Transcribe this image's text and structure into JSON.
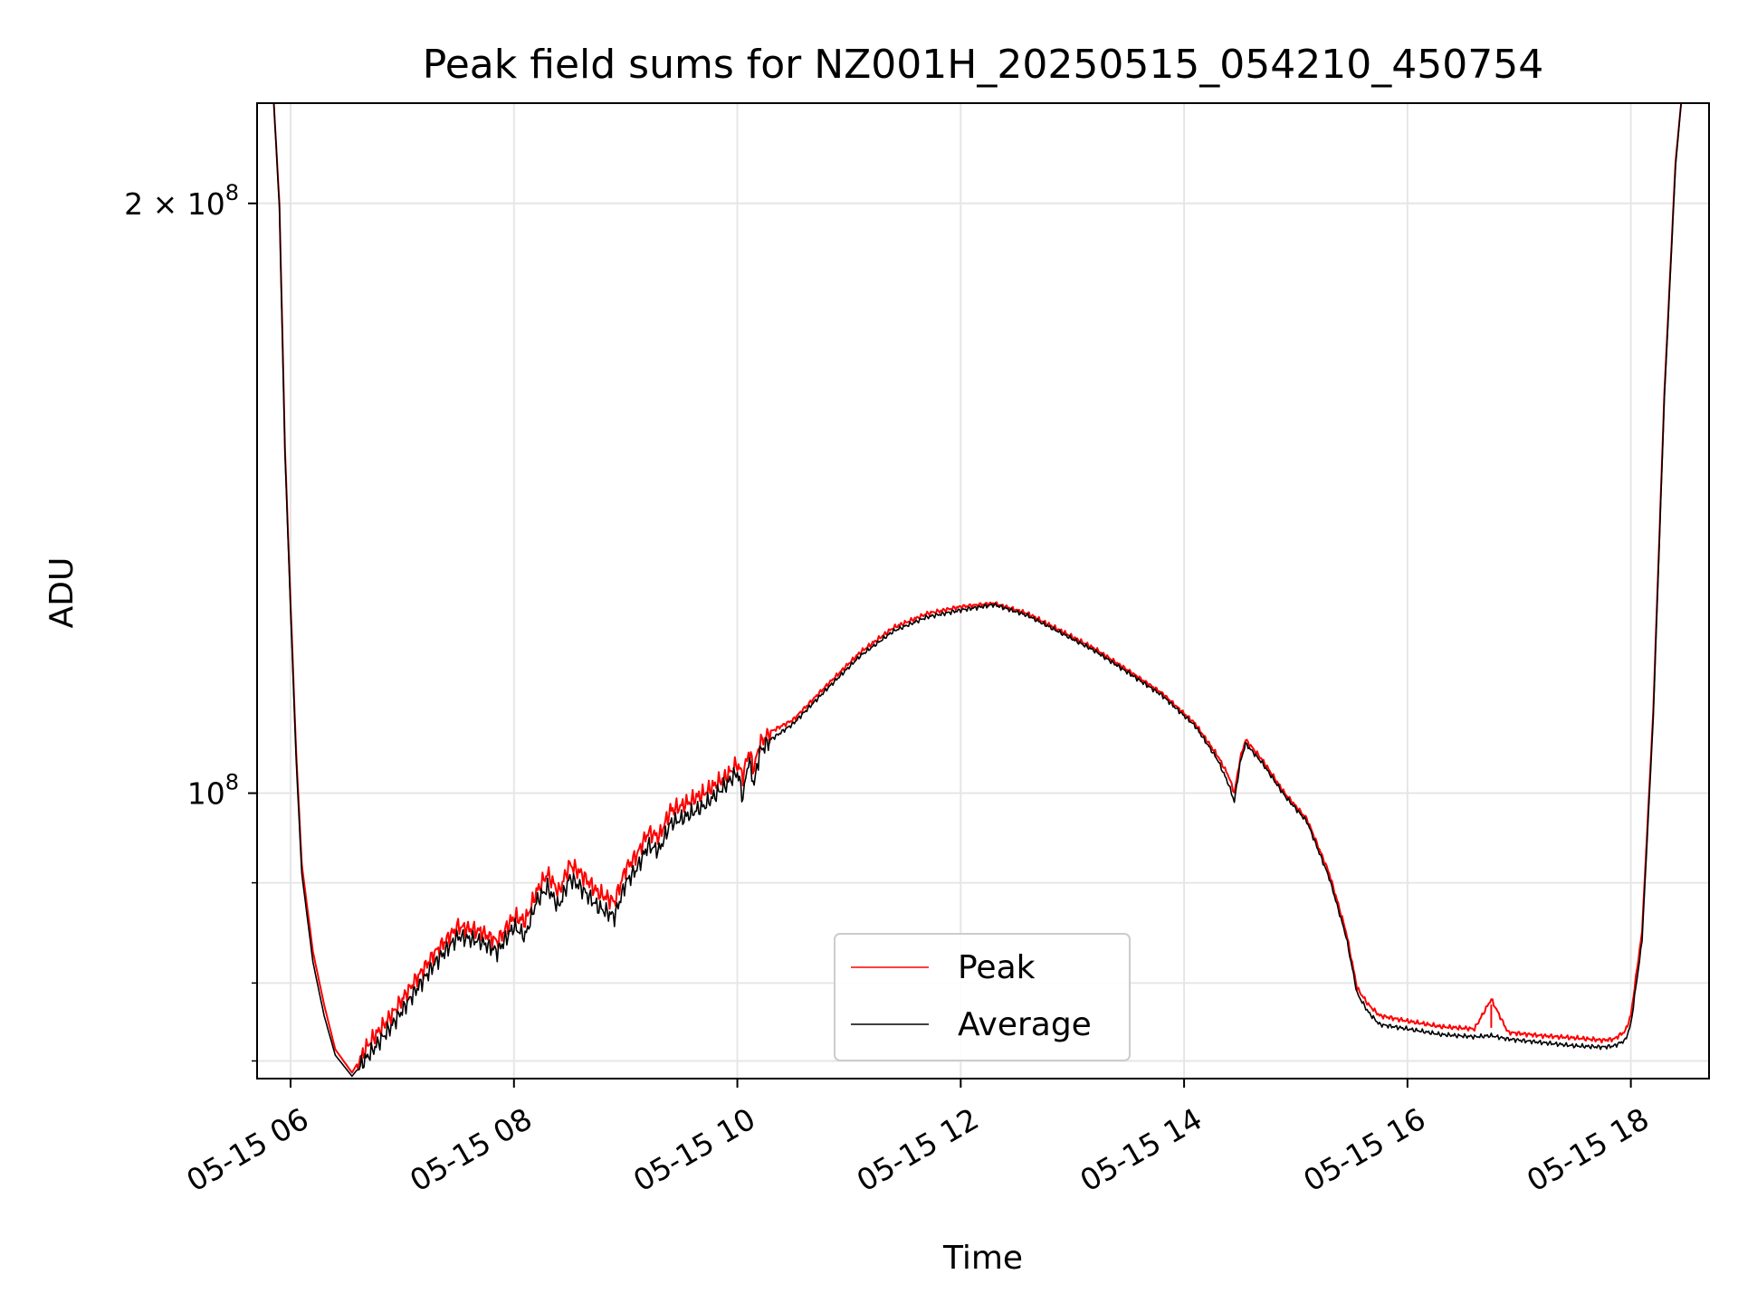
{
  "chart_data": {
    "type": "line",
    "title": "Peak field sums for NZ001H_20250515_054210_450754",
    "xlabel": "Time",
    "ylabel": "ADU",
    "x_unit": "hours (2025-05-15)",
    "xlim": [
      5.7,
      18.7
    ],
    "y_scale": "log",
    "ylim": [
      71500000,
      225000000
    ],
    "grid": true,
    "legend_position": "lower center",
    "x_ticks": [
      {
        "value": 6,
        "label": "05-15 06"
      },
      {
        "value": 8,
        "label": "05-15 08"
      },
      {
        "value": 10,
        "label": "05-15 10"
      },
      {
        "value": 12,
        "label": "05-15 12"
      },
      {
        "value": 14,
        "label": "05-15 14"
      },
      {
        "value": 16,
        "label": "05-15 16"
      },
      {
        "value": 18,
        "label": "05-15 18"
      }
    ],
    "y_major_ticks": [
      {
        "value": 100000000,
        "base": "10",
        "exp": "8"
      },
      {
        "value": 200000000,
        "prefix": "2 × ",
        "base": "10",
        "exp": "8"
      }
    ],
    "y_minor_ticks": [
      73000000,
      80000000,
      90000000
    ],
    "series": [
      {
        "name": "Peak",
        "color": "#ff0000",
        "x": [
          5.72,
          5.85,
          5.9,
          5.95,
          6.0,
          6.05,
          6.1,
          6.2,
          6.3,
          6.4,
          6.55,
          6.7,
          6.9,
          7.1,
          7.3,
          7.5,
          7.7,
          7.85,
          8.0,
          8.1,
          8.2,
          8.3,
          8.4,
          8.5,
          8.6,
          8.75,
          8.9,
          9.0,
          9.1,
          9.2,
          9.3,
          9.4,
          9.5,
          9.7,
          9.9,
          10.0,
          10.05,
          10.1,
          10.15,
          10.2,
          10.3,
          10.5,
          10.8,
          11.1,
          11.4,
          11.7,
          12.0,
          12.3,
          12.6,
          12.9,
          13.2,
          13.5,
          13.8,
          14.1,
          14.3,
          14.4,
          14.45,
          14.5,
          14.55,
          14.7,
          14.9,
          15.1,
          15.3,
          15.45,
          15.55,
          15.65,
          15.75,
          16.0,
          16.3,
          16.6,
          16.75,
          16.9,
          17.2,
          17.5,
          17.75,
          17.85,
          17.95,
          18.0,
          18.1,
          18.2,
          18.3,
          18.4,
          18.45,
          18.7
        ],
        "y": [
          225000000,
          225000000,
          200000000,
          150000000,
          125000000,
          105000000,
          92000000,
          83000000,
          78000000,
          74000000,
          72000000,
          74500000,
          77000000,
          80000000,
          83000000,
          85500000,
          85000000,
          84000000,
          86500000,
          86000000,
          89000000,
          91000000,
          89000000,
          92000000,
          91000000,
          89000000,
          88000000,
          91500000,
          93000000,
          95500000,
          95000000,
          98000000,
          98500000,
          100000000,
          102000000,
          103500000,
          102000000,
          105000000,
          103000000,
          106000000,
          107500000,
          109000000,
          113500000,
          118000000,
          121500000,
          123500000,
          124500000,
          125000000,
          123500000,
          121000000,
          118500000,
          115500000,
          112500000,
          108500000,
          104500000,
          102000000,
          100000000,
          104000000,
          106500000,
          104000000,
          100000000,
          97000000,
          91000000,
          85000000,
          79500000,
          78000000,
          77000000,
          76500000,
          76000000,
          75800000,
          78500000,
          75500000,
          75200000,
          75000000,
          74800000,
          74900000,
          75600000,
          77000000,
          85000000,
          110000000,
          160000000,
          210000000,
          225000000,
          225000000
        ]
      },
      {
        "name": "Average",
        "color": "#000000",
        "x": [
          5.72,
          5.85,
          5.9,
          5.95,
          6.0,
          6.05,
          6.1,
          6.2,
          6.3,
          6.4,
          6.55,
          6.7,
          6.9,
          7.1,
          7.3,
          7.5,
          7.7,
          7.85,
          8.0,
          8.1,
          8.2,
          8.3,
          8.4,
          8.5,
          8.6,
          8.75,
          8.9,
          9.0,
          9.1,
          9.2,
          9.3,
          9.4,
          9.5,
          9.7,
          9.9,
          10.0,
          10.05,
          10.1,
          10.15,
          10.2,
          10.3,
          10.5,
          10.8,
          11.1,
          11.4,
          11.7,
          12.0,
          12.3,
          12.6,
          12.9,
          13.2,
          13.5,
          13.8,
          14.1,
          14.3,
          14.4,
          14.45,
          14.5,
          14.55,
          14.7,
          14.9,
          15.1,
          15.3,
          15.45,
          15.55,
          15.65,
          15.75,
          16.0,
          16.3,
          16.6,
          16.75,
          16.9,
          17.2,
          17.5,
          17.75,
          17.85,
          17.95,
          18.0,
          18.1,
          18.2,
          18.3,
          18.4,
          18.45,
          18.7
        ],
        "y": [
          225000000,
          225000000,
          199000000,
          149000000,
          124000000,
          104000000,
          91000000,
          82000000,
          77000000,
          73500000,
          71700000,
          73500000,
          76000000,
          79000000,
          82000000,
          84500000,
          84000000,
          83000000,
          85500000,
          84500000,
          88000000,
          89500000,
          87500000,
          90500000,
          89500000,
          87500000,
          86500000,
          90000000,
          91500000,
          94000000,
          93500000,
          96500000,
          97000000,
          98500000,
          101000000,
          102500000,
          99500000,
          104000000,
          101000000,
          105000000,
          106500000,
          108500000,
          113000000,
          117500000,
          121000000,
          123000000,
          124000000,
          124800000,
          123200000,
          120700000,
          118200000,
          115200000,
          112200000,
          108200000,
          104000000,
          101000000,
          99000000,
          103500000,
          106000000,
          103600000,
          99700000,
          96700000,
          90500000,
          84500000,
          79000000,
          77300000,
          76200000,
          75800000,
          75300000,
          75100000,
          75200000,
          74900000,
          74600000,
          74300000,
          74200000,
          74300000,
          74800000,
          76200000,
          84000000,
          109000000,
          159000000,
          209000000,
          225000000,
          225000000
        ]
      }
    ]
  }
}
